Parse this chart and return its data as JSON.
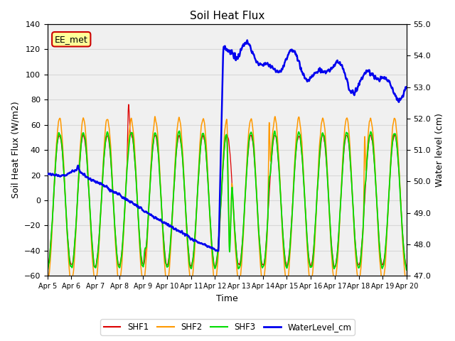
{
  "title": "Soil Heat Flux",
  "ylabel_left": "Soil Heat Flux (W/m2)",
  "ylabel_right": "Water level (cm)",
  "xlabel": "Time",
  "ylim_left": [
    -60,
    140
  ],
  "ylim_right": [
    47.0,
    55.0
  ],
  "yticks_left": [
    -60,
    -40,
    -20,
    0,
    20,
    40,
    60,
    80,
    100,
    120,
    140
  ],
  "yticks_right_vals": [
    47.0,
    48.0,
    49.0,
    50.0,
    51.0,
    52.0,
    53.0,
    54.0,
    55.0
  ],
  "yticks_right_labels": [
    "47.0",
    "48.0",
    "49.0",
    "50.0",
    "51.0",
    "52.0",
    "53.0",
    "54.0",
    "55.0"
  ],
  "colors": {
    "SHF1": "#dd0000",
    "SHF2": "#ff9900",
    "SHF3": "#00dd00",
    "WaterLevel_cm": "#0000ee"
  },
  "annotation_box": {
    "text": "EE_met",
    "facecolor": "#ffff99",
    "edgecolor": "#cc0000"
  },
  "grid_color": "#d8d8d8",
  "plot_bg_color": "#f0f0f0",
  "fig_bg_color": "#ffffff",
  "n_days": 15,
  "n_points": 2160
}
